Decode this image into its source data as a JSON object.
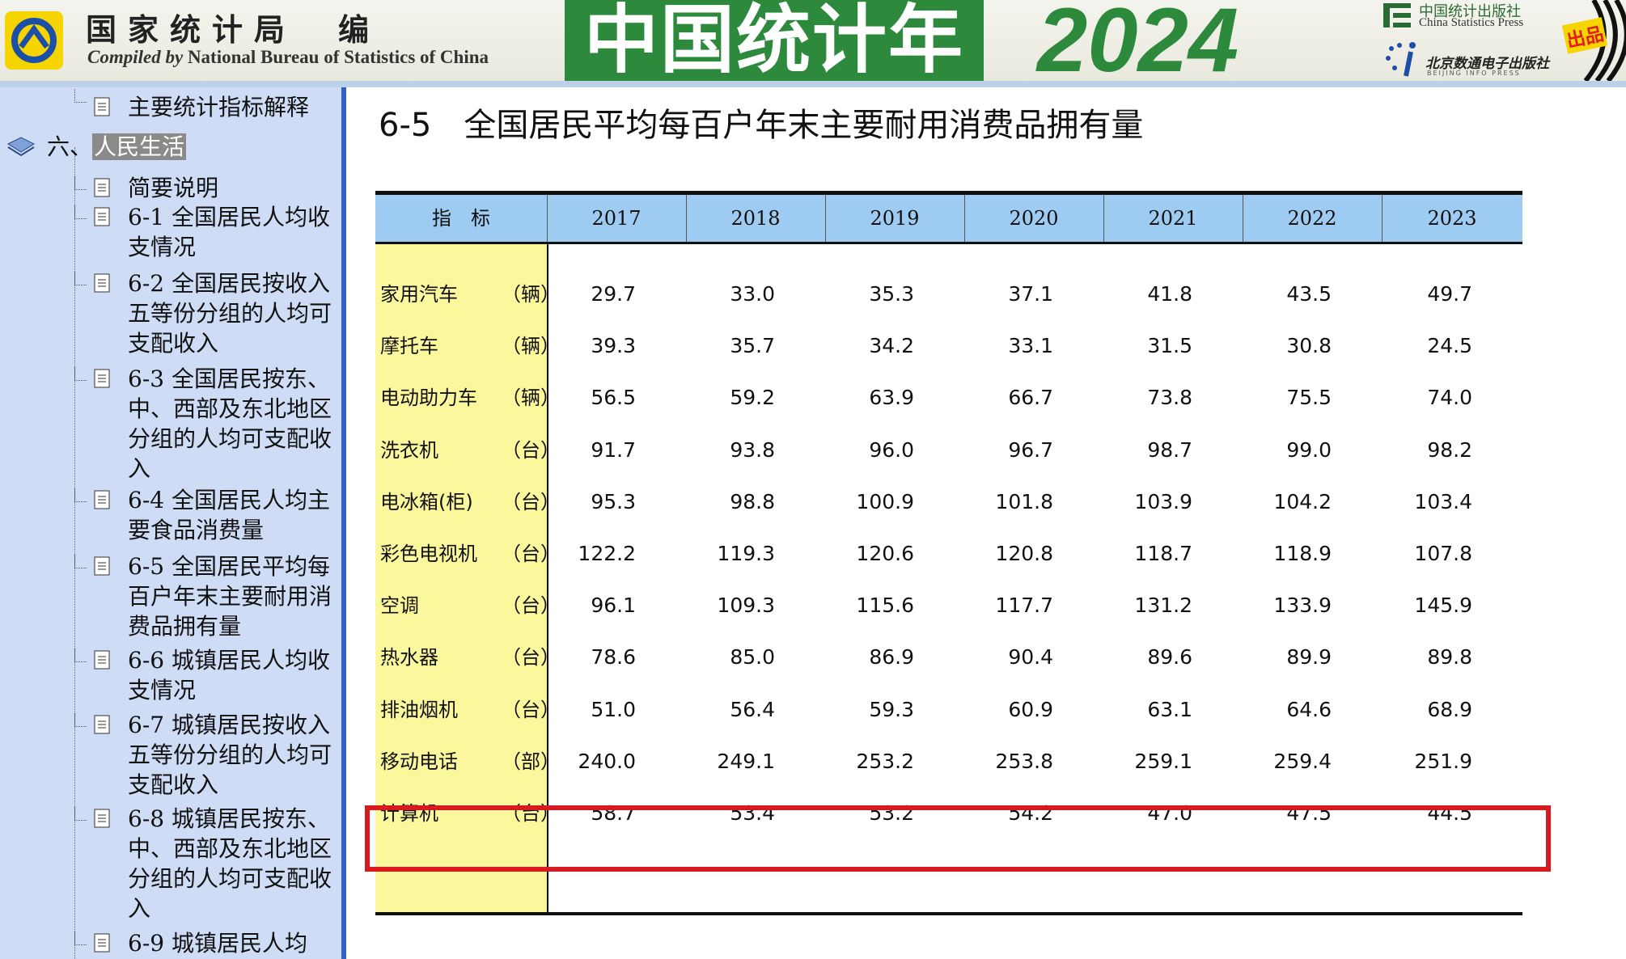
{
  "header": {
    "org_cn": "国家统计局　编",
    "org_en_prefix": "Compiled by",
    "org_en_rest": " National Bureau of Statistics of China",
    "book_title": "中国统计年鉴",
    "book_year": "2024",
    "press_cn": "中国统计出版社",
    "press_en": "China Statistics Press",
    "press2_cn": "北京数通电子出版社",
    "press2_en": "BEIJING INFO PRESS",
    "publish_label": "出品",
    "colors": {
      "title_green": "#2d8a3c",
      "badge_red": "#e21b1b"
    }
  },
  "sidebar": {
    "top_item": "主要统计指标解释",
    "section": {
      "prefix": "六、",
      "label": "人民生活"
    },
    "items": [
      "简要说明",
      "6-1  全国居民人均收支情况",
      "6-2  全国居民按收入五等份分组的人均可支配收入",
      "6-3  全国居民按东、中、西部及东北地区分组的人均可支配收入",
      "6-4  全国居民人均主要食品消费量",
      "6-5  全国居民平均每百户年末主要耐用消费品拥有量",
      "6-6  城镇居民人均收支情况",
      "6-7  城镇居民按收入五等份分组的人均可支配收入",
      "6-8  城镇居民按东、中、西部及东北地区分组的人均可支配收入",
      "6-9  城镇居民人均"
    ]
  },
  "main": {
    "table_title": "6-5　全国居民平均每百户年末主要耐用消费品拥有量",
    "header_label": "指　标",
    "years": [
      "2017",
      "2018",
      "2019",
      "2020",
      "2021",
      "2022",
      "2023"
    ],
    "rows": [
      {
        "name": "家用汽车",
        "unit": "（辆）",
        "values": [
          "29.7",
          "33.0",
          "35.3",
          "37.1",
          "41.8",
          "43.5",
          "49.7"
        ]
      },
      {
        "name": "摩托车",
        "unit": "（辆）",
        "values": [
          "39.3",
          "35.7",
          "34.2",
          "33.1",
          "31.5",
          "30.8",
          "24.5"
        ]
      },
      {
        "name": "电动助力车",
        "unit": "（辆）",
        "values": [
          "56.5",
          "59.2",
          "63.9",
          "66.7",
          "73.8",
          "75.5",
          "74.0"
        ]
      },
      {
        "name": "洗衣机",
        "unit": "（台）",
        "values": [
          "91.7",
          "93.8",
          "96.0",
          "96.7",
          "98.7",
          "99.0",
          "98.2"
        ]
      },
      {
        "name": "电冰箱(柜)",
        "unit": "（台）",
        "values": [
          "95.3",
          "98.8",
          "100.9",
          "101.8",
          "103.9",
          "104.2",
          "103.4"
        ]
      },
      {
        "name": "彩色电视机",
        "unit": "（台）",
        "values": [
          "122.2",
          "119.3",
          "120.6",
          "120.8",
          "118.7",
          "118.9",
          "107.8"
        ]
      },
      {
        "name": "空调",
        "unit": "（台）",
        "values": [
          "96.1",
          "109.3",
          "115.6",
          "117.7",
          "131.2",
          "133.9",
          "145.9"
        ]
      },
      {
        "name": "热水器",
        "unit": "（台）",
        "values": [
          "78.6",
          "85.0",
          "86.9",
          "90.4",
          "89.6",
          "89.9",
          "89.8"
        ]
      },
      {
        "name": "排油烟机",
        "unit": "（台）",
        "values": [
          "51.0",
          "56.4",
          "59.3",
          "60.9",
          "63.1",
          "64.6",
          "68.9"
        ]
      },
      {
        "name": "移动电话",
        "unit": "（部）",
        "values": [
          "240.0",
          "249.1",
          "253.2",
          "253.8",
          "259.1",
          "259.4",
          "251.9"
        ]
      },
      {
        "name": "计算机",
        "unit": "（台）",
        "values": [
          "58.7",
          "53.4",
          "53.2",
          "54.2",
          "47.0",
          "47.5",
          "44.5"
        ]
      }
    ],
    "colors": {
      "header_blue": "#9ecbf1",
      "label_yellow": "#fbf79c",
      "highlight_red": "#d71920",
      "sidebar_bg": "#cfdcf6"
    }
  }
}
